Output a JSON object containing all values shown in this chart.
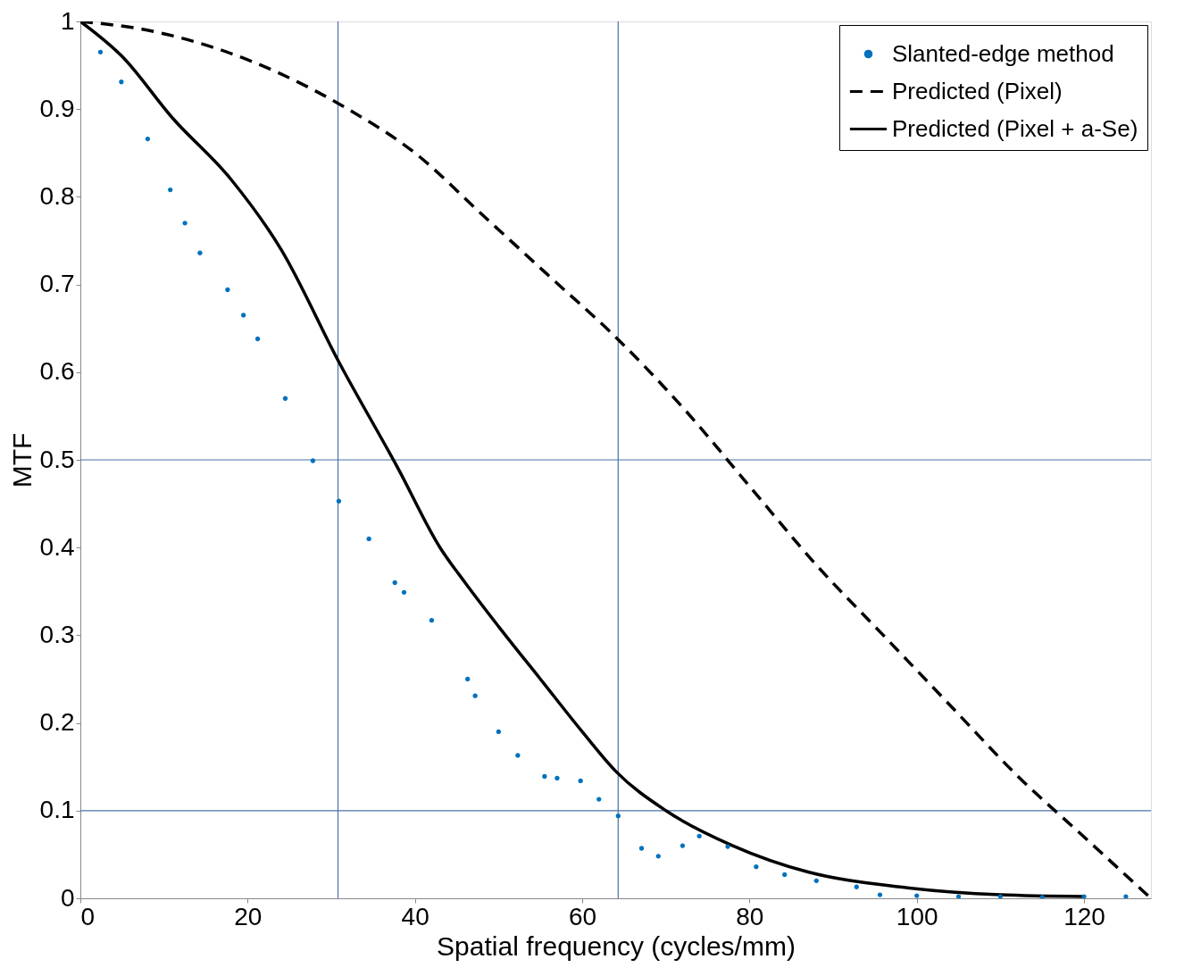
{
  "chart_data": {
    "type": "line",
    "xlabel": "Spatial frequency (cycles/mm)",
    "ylabel": "MTF",
    "xlim": [
      0,
      128
    ],
    "ylim": [
      0,
      1.0
    ],
    "xticks": [
      0,
      20,
      40,
      60,
      80,
      100,
      120
    ],
    "yticks": [
      0,
      0.1,
      0.2,
      0.3,
      0.4,
      0.5,
      0.6,
      0.7,
      0.8,
      0.9,
      1
    ],
    "grid": false,
    "legend": "top right",
    "series": [
      {
        "name": "Slanted-edge method",
        "color": "#0072bd",
        "type": "scatter",
        "marker": "circle",
        "x": [
          2.4,
          4.9,
          8.05,
          10.75,
          12.5,
          14.3,
          17.6,
          19.5,
          21.2,
          24.5,
          27.8,
          30.9,
          34.5,
          37.6,
          38.7,
          42,
          46.3,
          47.2,
          50,
          52.3,
          55.5,
          57,
          59.8,
          62,
          64.3,
          67.1,
          69.1,
          72,
          74,
          77.4,
          80.8,
          84.2,
          88,
          92.8,
          95.6,
          100,
          105,
          110,
          115,
          120,
          125
        ],
        "values": [
          0.965,
          0.931,
          0.866,
          0.808,
          0.77,
          0.736,
          0.694,
          0.665,
          0.638,
          0.57,
          0.499,
          0.453,
          0.41,
          0.36,
          0.349,
          0.317,
          0.25,
          0.231,
          0.19,
          0.163,
          0.139,
          0.137,
          0.134,
          0.113,
          0.094,
          0.057,
          0.048,
          0.06,
          0.071,
          0.059,
          0.036,
          0.027,
          0.02,
          0.013,
          0.004,
          0.003,
          0.002,
          0.002,
          0.001,
          0.002,
          0.002
        ]
      },
      {
        "name": "Predicted (Pixel)",
        "color": "#000000",
        "line_style": "dashed",
        "x": [
          0,
          8,
          16,
          24,
          32,
          40,
          48,
          56,
          64,
          72,
          80,
          88,
          96,
          104,
          112,
          120,
          128
        ],
        "values": [
          1,
          0.99,
          0.97,
          0.94,
          0.9,
          0.85,
          0.78,
          0.71,
          0.64,
          0.56,
          0.47,
          0.38,
          0.3,
          0.22,
          0.14,
          0.07,
          0
        ]
      },
      {
        "name": "Predicted (Pixel + a-Se)",
        "color": "#000000",
        "line_style": "solid",
        "x": [
          0,
          5,
          11,
          18,
          24,
          31,
          38,
          43,
          46,
          50,
          55,
          60,
          64,
          70,
          78,
          87,
          98,
          110,
          120
        ],
        "values": [
          1,
          0.96,
          0.89,
          0.82,
          0.74,
          0.61,
          0.49,
          0.4,
          0.36,
          0.31,
          0.25,
          0.19,
          0.145,
          0.1,
          0.06,
          0.03,
          0.013,
          0.004,
          0.002
        ]
      }
    ],
    "ref_lines": [
      {
        "axis": "x",
        "value": 30.8,
        "color": "#4a72a8"
      },
      {
        "axis": "x",
        "value": 64.3,
        "color": "#4a72a8"
      },
      {
        "axis": "y",
        "value": 0.5,
        "color": "#4a72a8"
      },
      {
        "axis": "y",
        "value": 0.1,
        "color": "#4a72a8"
      }
    ]
  }
}
